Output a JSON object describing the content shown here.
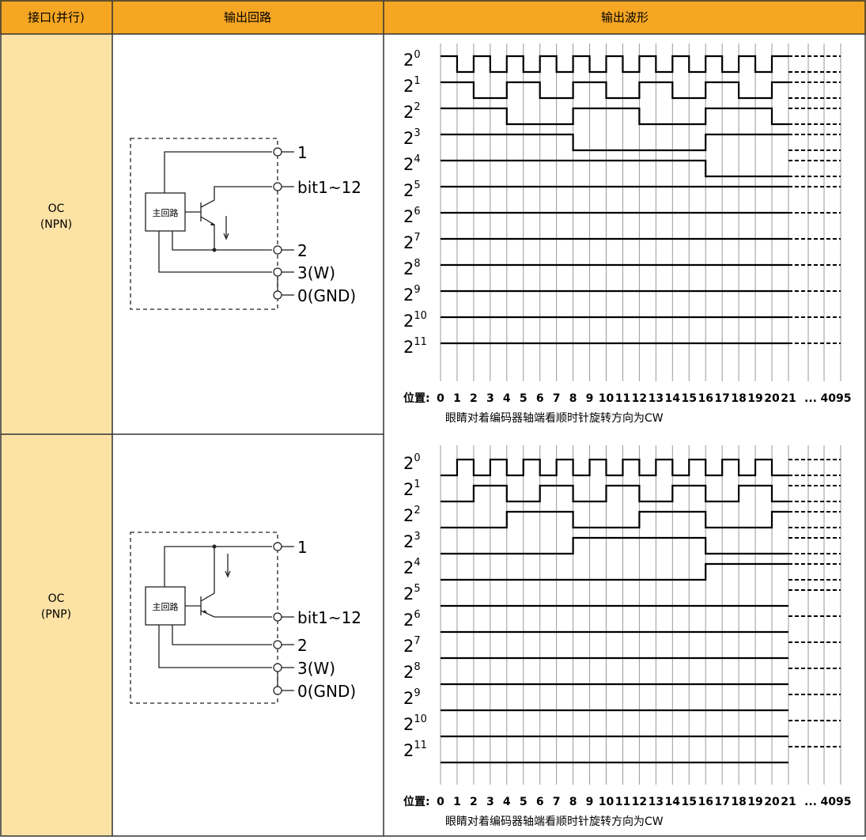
{
  "header": {
    "col_interface": "接口(并行)",
    "col_circuit": "输出回路",
    "col_waveform": "输出波形"
  },
  "rows": [
    {
      "interface": {
        "line1": "OC",
        "line2": "(NPN)"
      },
      "circuit": {
        "block_label": "主回路",
        "terminals": [
          "1",
          "bit1~12",
          "2",
          "3(W)",
          "0(GND)"
        ]
      },
      "waveform": {
        "position_label": "位置:",
        "positions": [
          "0",
          "1",
          "2",
          "3",
          "4",
          "5",
          "6",
          "7",
          "8",
          "9",
          "10",
          "11",
          "12",
          "13",
          "14",
          "15",
          "16",
          "17",
          "18",
          "19",
          "20",
          "21",
          "...",
          "4095"
        ],
        "caption": "眼睛对着编码器轴端看顺时针旋转方向为CW"
      }
    },
    {
      "interface": {
        "line1": "OC",
        "line2": "(PNP)"
      },
      "circuit": {
        "block_label": "主回路",
        "terminals": [
          "1",
          "bit1~12",
          "2",
          "3(W)",
          "0(GND)"
        ]
      },
      "waveform": {
        "position_label": "位置:",
        "positions": [
          "0",
          "1",
          "2",
          "3",
          "4",
          "5",
          "6",
          "7",
          "8",
          "9",
          "10",
          "11",
          "12",
          "13",
          "14",
          "15",
          "16",
          "17",
          "18",
          "19",
          "20",
          "21",
          "...",
          "4095"
        ],
        "caption": "眼睛对着编码器轴端看顺时针旋转方向为CW"
      }
    }
  ],
  "bits": [
    "0",
    "1",
    "2",
    "3",
    "4",
    "5",
    "6",
    "7",
    "8",
    "9",
    "10",
    "11"
  ],
  "bit_base": "2",
  "colors": {
    "header_bg": "#f5a623",
    "interface_bg": "#fde2a6",
    "border": "#333333"
  }
}
